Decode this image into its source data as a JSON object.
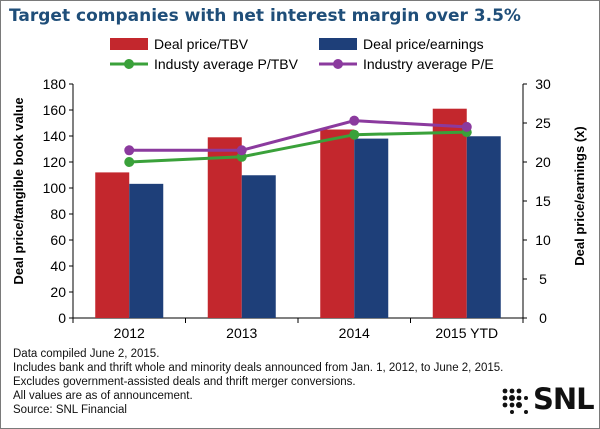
{
  "title": "Target companies with net interest margin over 3.5%",
  "notes": [
    "Data compiled June 2, 2015.",
    "Includes bank and thrift whole and minority deals announced from Jan. 1, 2012, to June 2, 2015.",
    "Excludes government-assisted deals and thrift merger conversions.",
    "All values are as of announcement.",
    "Source: SNL Financial"
  ],
  "logo": {
    "text": "SNL"
  },
  "colors": {
    "title": "#1f4e79",
    "bar_tbv": "#c3272d",
    "bar_pe": "#1e3f79",
    "line_tbv": "#3aa13a",
    "line_pe": "#8b3a9e",
    "axis": "#000000"
  },
  "chart_data": {
    "type": "bar",
    "categories": [
      "2012",
      "2013",
      "2014",
      "2015 YTD"
    ],
    "y_left": {
      "label": "Deal price/tangible book value",
      "min": 0,
      "max": 180,
      "ticks": [
        0,
        20,
        40,
        60,
        80,
        100,
        120,
        140,
        160,
        180
      ]
    },
    "y_right": {
      "label": "Deal price/earnings (x)",
      "min": 0,
      "max": 30,
      "ticks": [
        0,
        5,
        10,
        15,
        20,
        25,
        30
      ]
    },
    "grid": false,
    "legend_position": "top",
    "series": [
      {
        "name": "Deal price/TBV",
        "type": "bar",
        "axis": "left",
        "values": [
          112,
          139,
          145,
          161
        ]
      },
      {
        "name": "Deal price/earnings",
        "type": "bar",
        "axis": "right",
        "values": [
          17.2,
          18.3,
          23.0,
          23.3
        ]
      },
      {
        "name": "Industy average P/TBV",
        "type": "line",
        "axis": "left",
        "values": [
          120,
          124,
          141,
          143
        ]
      },
      {
        "name": "Industry average P/E",
        "type": "line",
        "axis": "right",
        "values": [
          21.5,
          21.5,
          25.3,
          24.5
        ]
      }
    ]
  }
}
